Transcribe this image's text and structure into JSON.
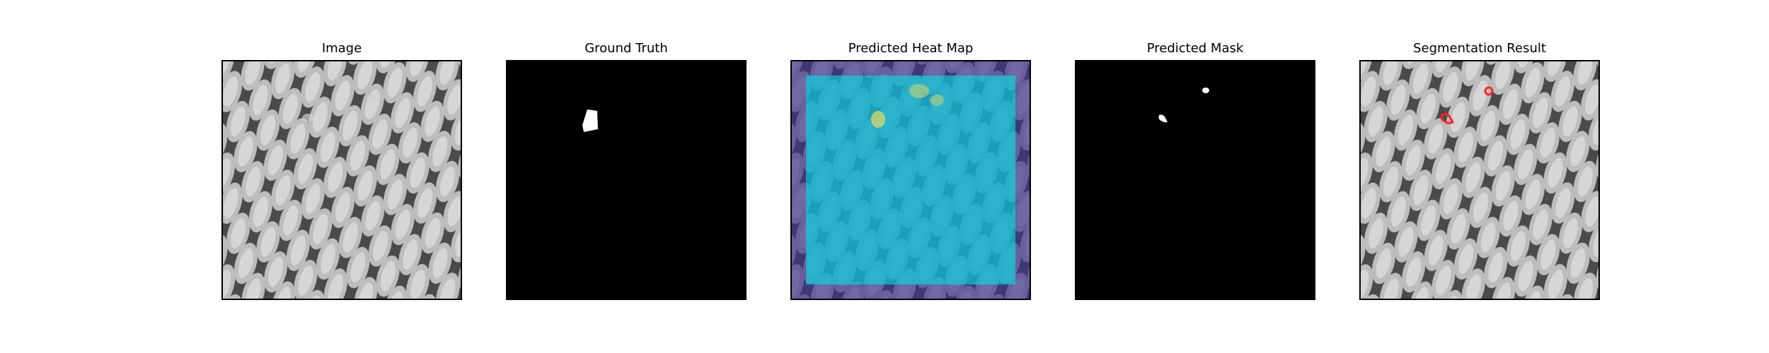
{
  "panels": [
    {
      "title": "Image"
    },
    {
      "title": "Ground Truth"
    },
    {
      "title": "Predicted Heat Map"
    },
    {
      "title": "Predicted Mask"
    },
    {
      "title": "Segmentation Result"
    }
  ],
  "colors": {
    "background": "#ffffff",
    "mask_background": "#000000",
    "mask_foreground": "#ffffff",
    "heatmap_high": "#00e5e5",
    "heatmap_low": "#3a2d8a",
    "heatmap_hot": "#d9d86a",
    "contour": "#ff2020"
  }
}
